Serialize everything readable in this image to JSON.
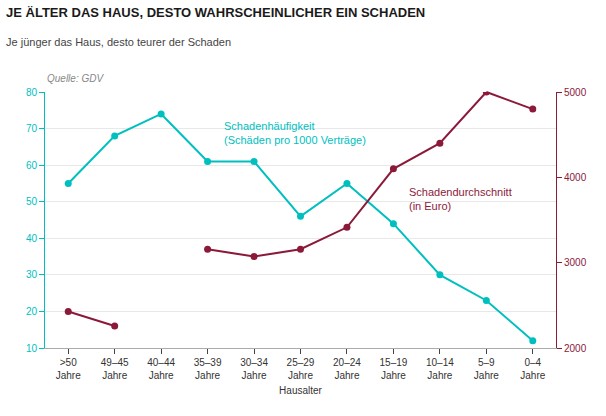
{
  "chart_data": {
    "type": "line",
    "title": "JE ÄLTER DAS HAUS, DESTO WAHRSCHEINLICHER EIN SCHADEN",
    "subtitle": "Je jünger das Haus, desto teurer der Schaden",
    "source": "Quelle: GDV",
    "x_label": "Hausalter",
    "categories": [
      ">50\nJahre",
      "49–45\nJahre",
      "40–44\nJahre",
      "35–39\nJahre",
      "30–34\nJahre",
      "25–29\nJahre",
      "20–24\nJahre",
      "15–19\nJahre",
      "10–14\nJahre",
      "5–9\nJahre",
      "0–4\nJahre"
    ],
    "series": [
      {
        "name": "Schadenhäufigkeit\n(Schäden pro 1000 Verträge)",
        "color": "#00BFBF",
        "axis": "y",
        "values": [
          55,
          68,
          74,
          61,
          61,
          46,
          55,
          44,
          30,
          23,
          12
        ]
      },
      {
        "name": "Schadendurchschnitt\n(in Euro)",
        "color": "#8B1A3A",
        "axis": "y",
        "values": [
          20,
          16,
          null,
          37,
          35,
          37,
          43,
          59,
          66,
          80,
          null
        ]
      },
      {
        "name": "Schadendurchschnitt\n(in Euro)",
        "color": "#8B1A3A",
        "axis": "y2",
        "values": [
          null,
          null,
          null,
          null,
          null,
          null,
          null,
          null,
          null,
          null,
          4800
        ]
      }
    ],
    "ylim": [
      10,
      80
    ],
    "yticks": [
      10,
      20,
      30,
      40,
      50,
      60,
      70,
      80
    ],
    "y2lim": [
      2000,
      5000
    ],
    "y2ticks": [
      2000,
      3000,
      4000,
      5000
    ],
    "grid": true,
    "marker": "circle"
  }
}
